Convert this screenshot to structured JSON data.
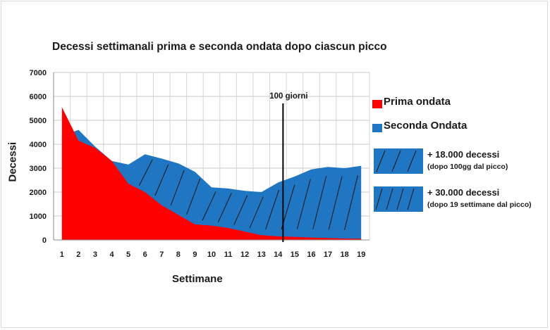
{
  "chart_data": {
    "type": "area",
    "title": "Decessi settimanali prima e seconda ondata dopo ciascun picco",
    "xlabel": "Settimane",
    "ylabel": "Decessi",
    "categories": [
      1,
      2,
      3,
      4,
      5,
      6,
      7,
      8,
      9,
      10,
      11,
      12,
      13,
      14,
      15,
      16,
      17,
      18,
      19
    ],
    "ylim": [
      0,
      7000
    ],
    "yticks": [
      0,
      1000,
      2000,
      3000,
      4000,
      5000,
      6000,
      7000
    ],
    "grid": true,
    "legend_position": "right",
    "series": [
      {
        "name": "Seconda Ondata",
        "color": "#1f77c4",
        "values": [
          4350,
          4600,
          3900,
          3300,
          3150,
          3580,
          3400,
          3200,
          2850,
          2200,
          2150,
          2050,
          2000,
          2400,
          2650,
          2950,
          3050,
          3000,
          3100
        ]
      },
      {
        "name": "Prima ondata",
        "color": "#ff0000",
        "values": [
          5550,
          4150,
          3850,
          3300,
          2350,
          2000,
          1450,
          1050,
          650,
          600,
          500,
          350,
          200,
          150,
          130,
          100,
          80,
          60,
          50
        ]
      }
    ],
    "annotations": [
      {
        "type": "vertical-line",
        "x": 14.3,
        "label": "100 giorni"
      }
    ],
    "hatch_notes": [
      {
        "title": "+ 18.000 decessi",
        "subtitle": "(dopo 100gg dal picco)"
      },
      {
        "title": "+ 30.000 decessi",
        "subtitle": "(dopo 19 settimane dal picco)"
      }
    ]
  }
}
